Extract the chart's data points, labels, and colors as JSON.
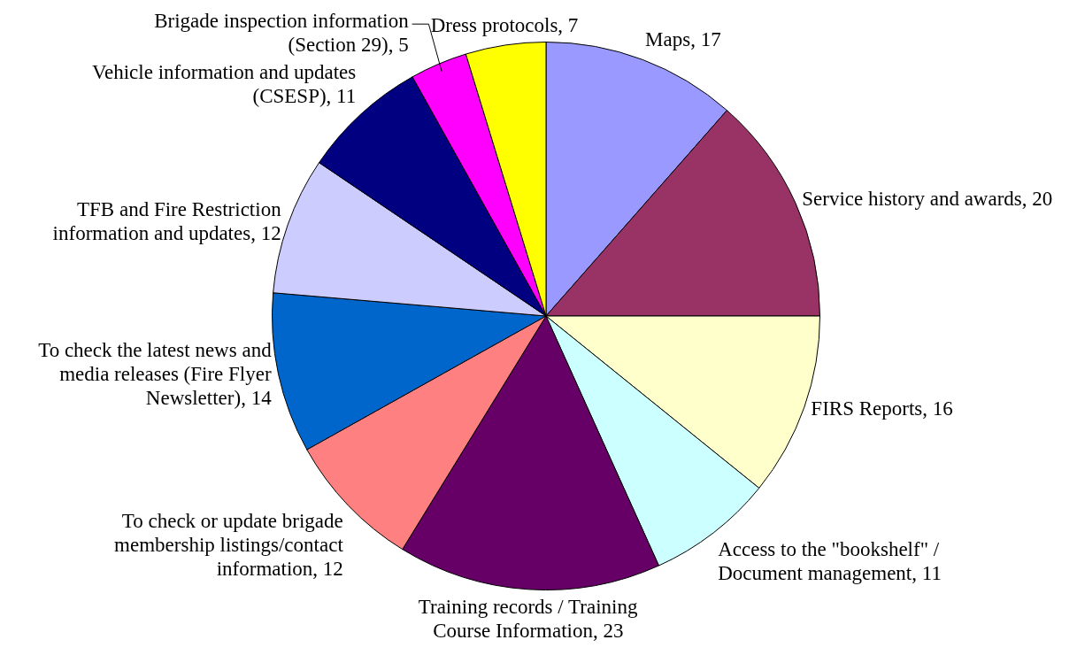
{
  "chart_data": {
    "type": "pie",
    "categories": [
      "Maps",
      "Service history and awards",
      "FIRS Reports",
      "Access to the \"bookshelf\" / Document management",
      "Training records / Training Course Information",
      "To check or update brigade membership listings/contact information",
      "To check the latest news and media releases (Fire Flyer Newsletter)",
      "TFB and Fire Restriction information and updates",
      "Vehicle information and updates (CSESP)",
      "Brigade inspection information (Section 29)",
      "Dress protocols"
    ],
    "values": [
      17,
      20,
      16,
      11,
      23,
      12,
      14,
      12,
      11,
      5,
      7
    ],
    "colors": [
      "#9999ff",
      "#993366",
      "#ffffcc",
      "#ccffff",
      "#660066",
      "#ff8080",
      "#0066cc",
      "#ccccff",
      "#000080",
      "#ff00ff",
      "#ffff00"
    ],
    "value_labels": [
      ", 17",
      ", 20",
      ", 16",
      ", 11",
      ", 23",
      ", 12",
      ", 14",
      ", 12",
      ", 11",
      ", 5",
      ", 7"
    ]
  }
}
